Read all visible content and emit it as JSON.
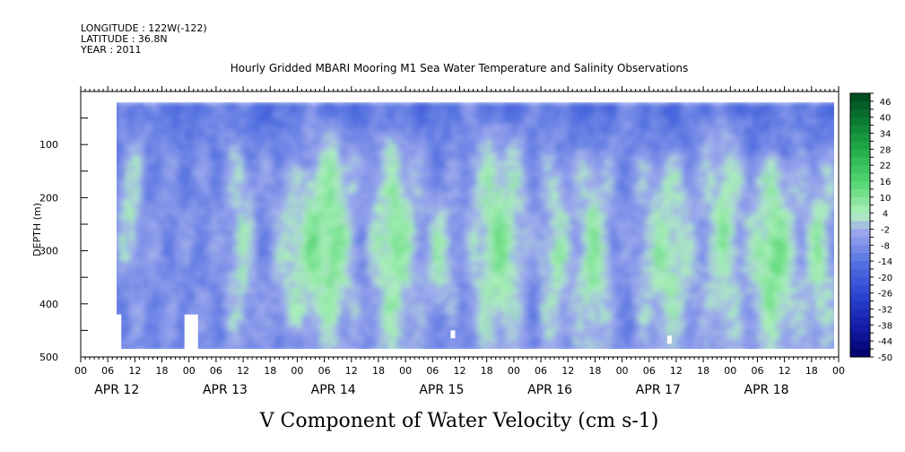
{
  "header": {
    "longitude": "LONGITUDE : 122W(-122)",
    "latitude": "LATITUDE : 36.8N",
    "year": "YEAR : 2011",
    "title": "Hourly Gridded MBARI Mooring M1 Sea Water Temperature and Salinity Observations"
  },
  "caption": "V Component of Water Velocity (cm s-1)",
  "chart_data": {
    "type": "heatmap",
    "title": "Hourly Gridded MBARI Mooring M1 Sea Water Temperature and Salinity Observations",
    "xlabel": "",
    "ylabel": "DEPTH (m)",
    "variable": "V Component of Water Velocity (cm s-1)",
    "x_range_hours": [
      0,
      168
    ],
    "y_range_m": [
      0,
      500
    ],
    "y_reversed": true,
    "data_depth_range_m": [
      20,
      490
    ],
    "data_start_hour": 6,
    "y_ticks": [
      "100",
      "200",
      "300",
      "400",
      "500"
    ],
    "x_hour_ticks": [
      "00",
      "06",
      "12",
      "18",
      "00",
      "06",
      "12",
      "18",
      "00",
      "06",
      "12",
      "18",
      "00",
      "06",
      "12",
      "18",
      "00",
      "06",
      "12",
      "18",
      "00",
      "06",
      "12",
      "18",
      "00",
      "06",
      "12",
      "18",
      "00"
    ],
    "day_labels": [
      "APR 12",
      "APR 13",
      "APR 14",
      "APR 15",
      "APR 16",
      "APR 17",
      "APR 18"
    ],
    "colorbar_levels": [
      "46",
      "40",
      "34",
      "28",
      "22",
      "16",
      "10",
      "4",
      "-2",
      "-8",
      "-14",
      "-20",
      "-26",
      "-32",
      "-38",
      "-44",
      "-50"
    ],
    "colorbar_range": [
      -50,
      50
    ],
    "colors": {
      "strong_negative": "#000066",
      "negative": "#3344cc",
      "near_zero_negative": "#9aa6ec",
      "near_zero_positive": "#a8ecb4",
      "positive": "#33cc55",
      "strong_positive": "#005522",
      "missing": "#ffffff"
    },
    "positive_bands": [
      {
        "start_h": 9,
        "end_h": 12,
        "depth_top": 90,
        "depth_bottom": 330,
        "value": 3
      },
      {
        "start_h": 33,
        "end_h": 37,
        "depth_top": 100,
        "depth_bottom": 470,
        "value": 3
      },
      {
        "start_h": 43,
        "end_h": 52,
        "depth_top": 150,
        "depth_bottom": 440,
        "value": 5
      },
      {
        "start_h": 50,
        "end_h": 60,
        "depth_top": 60,
        "depth_bottom": 480,
        "value": 10
      },
      {
        "start_h": 64,
        "end_h": 74,
        "depth_top": 80,
        "depth_bottom": 490,
        "value": 9
      },
      {
        "start_h": 76,
        "end_h": 82,
        "depth_top": 200,
        "depth_bottom": 400,
        "value": 3
      },
      {
        "start_h": 86,
        "end_h": 98,
        "depth_top": 60,
        "depth_bottom": 490,
        "value": 9
      },
      {
        "start_h": 102,
        "end_h": 108,
        "depth_top": 120,
        "depth_bottom": 490,
        "value": 4
      },
      {
        "start_h": 110,
        "end_h": 116,
        "depth_top": 120,
        "depth_bottom": 490,
        "value": 8
      },
      {
        "start_h": 123,
        "end_h": 136,
        "depth_top": 120,
        "depth_bottom": 490,
        "value": 6
      },
      {
        "start_h": 138,
        "end_h": 146,
        "depth_top": 60,
        "depth_bottom": 490,
        "value": 6
      },
      {
        "start_h": 148,
        "end_h": 158,
        "depth_top": 130,
        "depth_bottom": 490,
        "value": 12
      },
      {
        "start_h": 160,
        "end_h": 166,
        "depth_top": 120,
        "depth_bottom": 490,
        "value": 5
      }
    ],
    "missing_patches": [
      {
        "start_h": 6,
        "end_h": 9,
        "depth_top": 420,
        "depth_bottom": 490
      },
      {
        "start_h": 23,
        "end_h": 26,
        "depth_top": 420,
        "depth_bottom": 490
      },
      {
        "start_h": 82,
        "end_h": 83,
        "depth_top": 450,
        "depth_bottom": 465
      },
      {
        "start_h": 130,
        "end_h": 131,
        "depth_top": 460,
        "depth_bottom": 475
      }
    ]
  }
}
